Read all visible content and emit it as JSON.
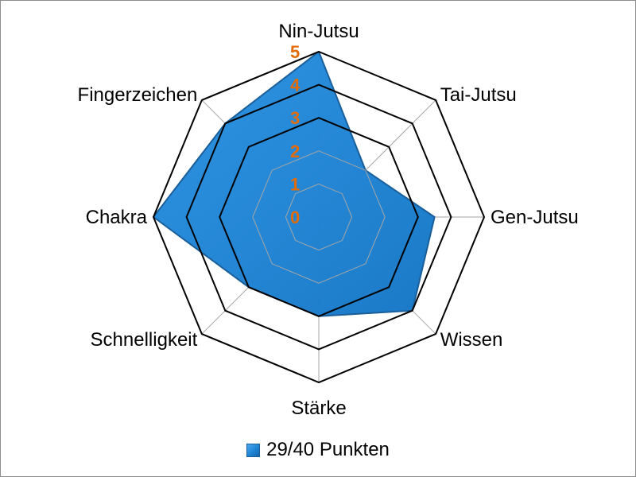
{
  "chart_data": {
    "type": "radar",
    "categories": [
      "Nin-Jutsu",
      "Tai-Jutsu",
      "Gen-Jutsu",
      "Wissen",
      "Stärke",
      "Schnelligkeit",
      "Chakra",
      "Fingerzeichen"
    ],
    "series": [
      {
        "name": "29/40 Punkten",
        "values": [
          5,
          2,
          3.5,
          4,
          3,
          3,
          5,
          4
        ],
        "color": "#1f86d8"
      }
    ],
    "rlim": [
      0,
      5
    ],
    "ticks": [
      "0",
      "1",
      "2",
      "3",
      "4",
      "5"
    ],
    "tick_color": "#e36c0a",
    "grid": true,
    "legend_position": "bottom"
  }
}
